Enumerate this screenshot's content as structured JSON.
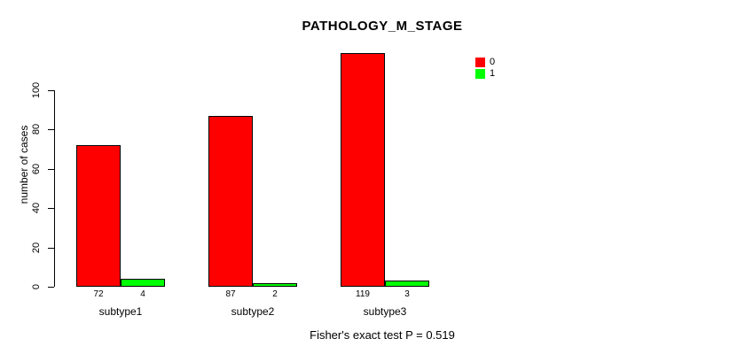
{
  "title": "PATHOLOGY_M_STAGE",
  "footer": "Fisher's exact test P = 0.519",
  "chart_data": {
    "type": "bar",
    "title": "PATHOLOGY_M_STAGE",
    "categories": [
      "subtype1",
      "subtype2",
      "subtype3"
    ],
    "series": [
      {
        "name": "0",
        "color": "#ff0000",
        "values": [
          72,
          87,
          119
        ]
      },
      {
        "name": "1",
        "color": "#00ff00",
        "values": [
          4,
          2,
          3
        ]
      }
    ],
    "xlabel": "",
    "ylabel": "number of cases",
    "yticks": [
      0,
      20,
      40,
      60,
      80,
      100
    ],
    "ylim": [
      0,
      120
    ],
    "grid": false,
    "legend_position": "top-right",
    "bar_border_color": "#000000",
    "annotation": "Fisher's exact test P = 0.519"
  },
  "legend": {
    "items": [
      {
        "label": "0",
        "color": "#ff0000"
      },
      {
        "label": "1",
        "color": "#00ff00"
      }
    ]
  }
}
